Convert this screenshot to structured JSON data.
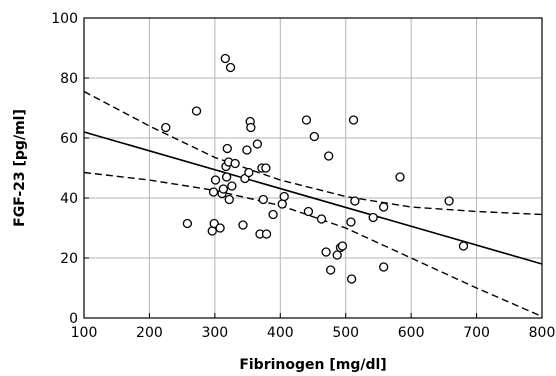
{
  "chart_data": {
    "type": "scatter",
    "xlabel": "Fibrinogen [mg/dl]",
    "ylabel": "FGF-23 [pg/ml]",
    "xlim": [
      100,
      800
    ],
    "ylim": [
      0,
      100
    ],
    "xticks": [
      100,
      200,
      300,
      400,
      500,
      600,
      700,
      800
    ],
    "yticks": [
      0,
      20,
      40,
      60,
      80,
      100
    ],
    "grid": true,
    "points": [
      {
        "x": 225,
        "y": 63.5
      },
      {
        "x": 258,
        "y": 31.5
      },
      {
        "x": 272,
        "y": 69
      },
      {
        "x": 296,
        "y": 29
      },
      {
        "x": 298,
        "y": 42
      },
      {
        "x": 299,
        "y": 31.5
      },
      {
        "x": 301,
        "y": 46
      },
      {
        "x": 308,
        "y": 30
      },
      {
        "x": 311,
        "y": 41.5
      },
      {
        "x": 313,
        "y": 43
      },
      {
        "x": 316,
        "y": 86.5
      },
      {
        "x": 317,
        "y": 50.5
      },
      {
        "x": 318,
        "y": 47
      },
      {
        "x": 319,
        "y": 56.5
      },
      {
        "x": 321,
        "y": 52
      },
      {
        "x": 322,
        "y": 39.5
      },
      {
        "x": 324,
        "y": 83.5
      },
      {
        "x": 326,
        "y": 44
      },
      {
        "x": 331,
        "y": 51.5
      },
      {
        "x": 343,
        "y": 31
      },
      {
        "x": 346,
        "y": 46.5
      },
      {
        "x": 349,
        "y": 56
      },
      {
        "x": 352,
        "y": 48.5
      },
      {
        "x": 354,
        "y": 65.5
      },
      {
        "x": 355,
        "y": 63.5
      },
      {
        "x": 365,
        "y": 58
      },
      {
        "x": 369,
        "y": 28
      },
      {
        "x": 372,
        "y": 50
      },
      {
        "x": 374,
        "y": 39.5
      },
      {
        "x": 378,
        "y": 50
      },
      {
        "x": 379,
        "y": 28
      },
      {
        "x": 389,
        "y": 34.5
      },
      {
        "x": 403,
        "y": 38
      },
      {
        "x": 406,
        "y": 40.5
      },
      {
        "x": 440,
        "y": 66
      },
      {
        "x": 443,
        "y": 35.5
      },
      {
        "x": 452,
        "y": 60.5
      },
      {
        "x": 463,
        "y": 33
      },
      {
        "x": 470,
        "y": 22
      },
      {
        "x": 474,
        "y": 54
      },
      {
        "x": 477,
        "y": 16
      },
      {
        "x": 487,
        "y": 21
      },
      {
        "x": 492,
        "y": 23.5
      },
      {
        "x": 495,
        "y": 24
      },
      {
        "x": 508,
        "y": 32
      },
      {
        "x": 509,
        "y": 13
      },
      {
        "x": 512,
        "y": 66
      },
      {
        "x": 514,
        "y": 39
      },
      {
        "x": 542,
        "y": 33.5
      },
      {
        "x": 558,
        "y": 17
      },
      {
        "x": 558,
        "y": 37
      },
      {
        "x": 583,
        "y": 47
      },
      {
        "x": 658,
        "y": 39
      },
      {
        "x": 680,
        "y": 24
      }
    ],
    "regression_line": {
      "x": [
        100,
        800
      ],
      "y": [
        62,
        18
      ]
    },
    "confidence_upper": {
      "x": [
        100,
        200,
        300,
        400,
        500,
        600,
        700,
        800
      ],
      "y": [
        75.5,
        64,
        53.5,
        46,
        40.5,
        37,
        35.5,
        34.5
      ]
    },
    "confidence_lower": {
      "x": [
        100,
        200,
        300,
        400,
        500,
        600,
        700,
        800
      ],
      "y": [
        48.5,
        46,
        42.5,
        37.5,
        30,
        20,
        10,
        0.5
      ]
    }
  }
}
